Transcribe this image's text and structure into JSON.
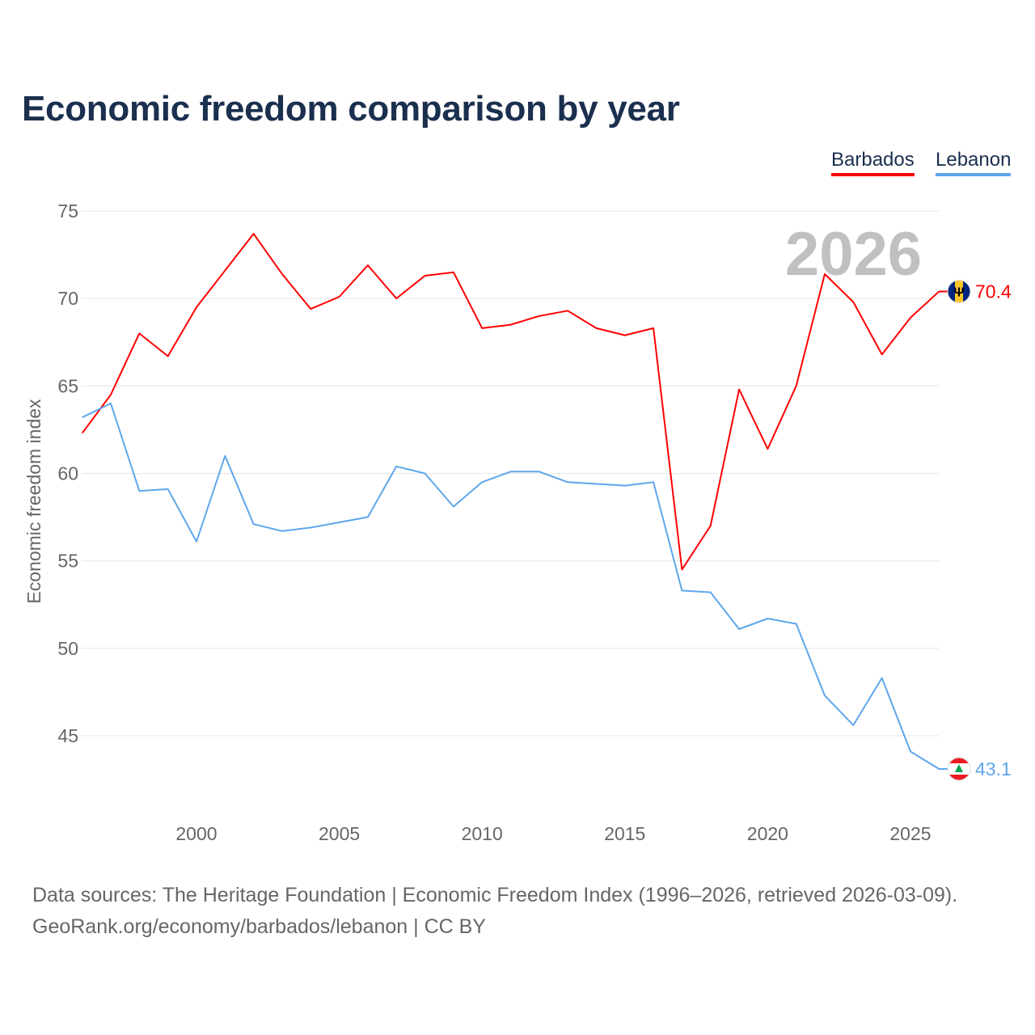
{
  "chart_data": {
    "type": "line",
    "title": "Economic freedom comparison by year",
    "xlabel": "",
    "ylabel": "Economic freedom index",
    "ylim": [
      41,
      76
    ],
    "xlim": [
      1996,
      2026
    ],
    "yticks": [
      45,
      50,
      55,
      60,
      65,
      70,
      75
    ],
    "xticks": [
      2000,
      2005,
      2010,
      2015,
      2020,
      2025
    ],
    "watermark_year": "2026",
    "grid": true,
    "legend_position": "top-right",
    "x": [
      1996,
      1997,
      1998,
      1999,
      2000,
      2001,
      2002,
      2003,
      2004,
      2005,
      2006,
      2007,
      2008,
      2009,
      2010,
      2011,
      2012,
      2013,
      2014,
      2015,
      2016,
      2017,
      2018,
      2019,
      2020,
      2021,
      2022,
      2023,
      2024,
      2025,
      2026
    ],
    "series": [
      {
        "name": "Barbados",
        "color": "#ff0000",
        "end_label": "70.4",
        "values": [
          62.3,
          64.5,
          68.0,
          66.7,
          69.5,
          71.6,
          73.7,
          71.4,
          69.4,
          70.1,
          71.9,
          70.0,
          71.3,
          71.5,
          68.3,
          68.5,
          69.0,
          69.3,
          68.3,
          67.9,
          68.3,
          54.5,
          57.0,
          64.8,
          61.4,
          65.0,
          71.4,
          69.8,
          66.8,
          68.9,
          70.4
        ]
      },
      {
        "name": "Lebanon",
        "color": "#5ea6ec",
        "end_label": "43.1",
        "values": [
          63.2,
          64.0,
          59.0,
          59.1,
          56.1,
          61.0,
          57.1,
          56.7,
          56.9,
          57.2,
          57.5,
          60.4,
          60.0,
          58.1,
          59.5,
          60.1,
          60.1,
          59.5,
          59.4,
          59.3,
          59.5,
          53.3,
          53.2,
          51.1,
          51.7,
          51.4,
          47.3,
          45.6,
          48.3,
          44.1,
          43.1
        ]
      }
    ]
  },
  "footer": {
    "line1": "Data sources: The Heritage Foundation | Economic Freedom Index (1996–2026, retrieved 2026-03-09).",
    "line2": "GeoRank.org/economy/barbados/lebanon | CC BY"
  }
}
